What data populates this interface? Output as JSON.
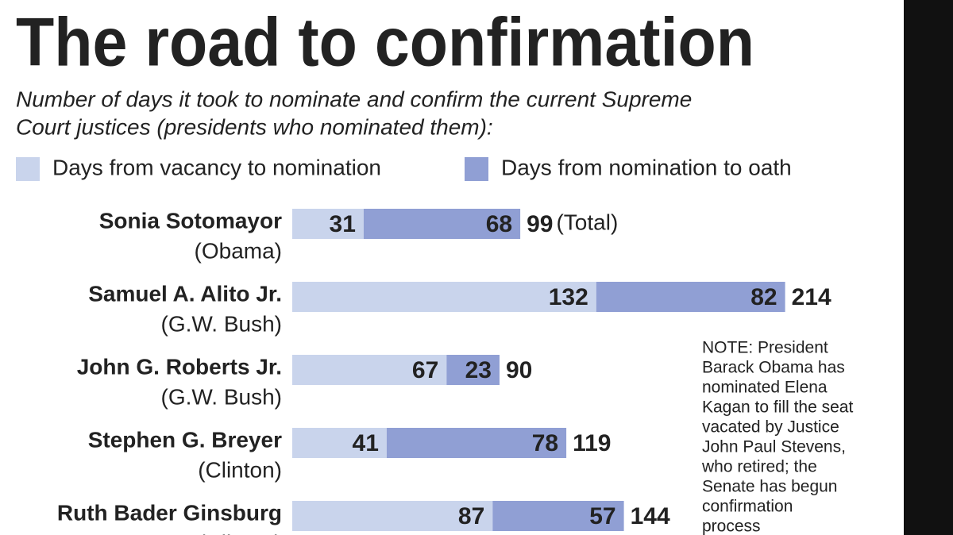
{
  "chart_data": {
    "type": "stacked-bar-horizontal",
    "title": "The road to confirmation",
    "subtitle": [
      "Number of days it took to nominate and confirm the current Supreme",
      "Court justices (presidents who nominated them):"
    ],
    "categories": [
      "Sonia Sotomayor",
      "Samuel A. Alito Jr.",
      "John G. Roberts Jr.",
      "Stephen G. Breyer",
      "Ruth Bader Ginsburg"
    ],
    "presidents": [
      "(Obama)",
      "(G.W. Bush)",
      "(G.W. Bush)",
      "(Clinton)",
      "(Clinton)"
    ],
    "series": [
      {
        "name": "Days from vacancy to nomination",
        "color": "#c9d4ec",
        "values": [
          31,
          132,
          67,
          41,
          87
        ]
      },
      {
        "name": "Days from nomination to oath",
        "color": "#909fd4",
        "values": [
          68,
          82,
          23,
          78,
          57
        ]
      }
    ],
    "totals": [
      99,
      214,
      90,
      119,
      144
    ],
    "total_label": "(Total)",
    "note": [
      "NOTE: President",
      "Barack Obama has",
      "nominated Elena",
      "Kagan to fill the seat",
      "vacated by Justice",
      "John Paul Stevens,",
      "who retired; the",
      "Senate has begun",
      "confirmation",
      "process"
    ]
  }
}
